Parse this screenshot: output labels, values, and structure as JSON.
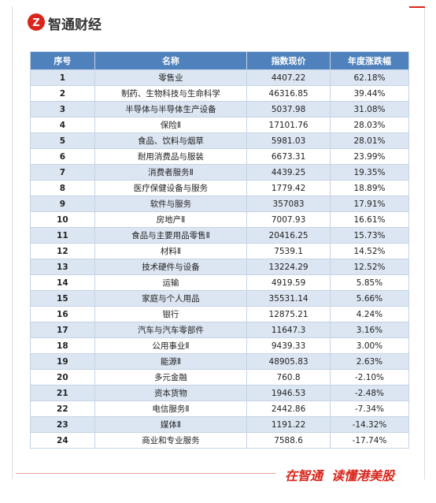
{
  "header": {
    "brand": "智通财经"
  },
  "table": {
    "headers": [
      "序号",
      "名称",
      "指数现价",
      "年度涨跌幅"
    ],
    "rows": [
      [
        1,
        "零售业",
        4407.22,
        "62.18%"
      ],
      [
        2,
        "制药、生物科技与生命科学",
        46316.85,
        "39.44%"
      ],
      [
        3,
        "半导体与半导体生产设备",
        5037.98,
        "31.08%"
      ],
      [
        4,
        "保险Ⅱ",
        17101.76,
        "28.03%"
      ],
      [
        5,
        "食品、饮料与烟草",
        5981.03,
        "28.01%"
      ],
      [
        6,
        "耐用消费品与服装",
        6673.31,
        "23.99%"
      ],
      [
        7,
        "消费者服务Ⅱ",
        4439.25,
        "19.35%"
      ],
      [
        8,
        "医疗保健设备与服务",
        1779.42,
        "18.89%"
      ],
      [
        9,
        "软件与服务",
        357083,
        "17.91%"
      ],
      [
        10,
        "房地产Ⅱ",
        7007.93,
        "16.61%"
      ],
      [
        11,
        "食品与主要用品零售Ⅱ",
        20416.25,
        "15.73%"
      ],
      [
        12,
        "材料Ⅱ",
        7539.1,
        "14.52%"
      ],
      [
        13,
        "技术硬件与设备",
        13224.29,
        "12.52%"
      ],
      [
        14,
        "运输",
        4919.59,
        "5.85%"
      ],
      [
        15,
        "家庭与个人用品",
        35531.14,
        "5.66%"
      ],
      [
        16,
        "银行",
        12875.21,
        "4.24%"
      ],
      [
        17,
        "汽车与汽车零部件",
        11647.3,
        "3.16%"
      ],
      [
        18,
        "公用事业Ⅱ",
        9439.33,
        "3.00%"
      ],
      [
        19,
        "能源Ⅱ",
        48905.83,
        "2.63%"
      ],
      [
        20,
        "多元金融",
        760.8,
        "-2.10%"
      ],
      [
        21,
        "资本货物",
        1946.53,
        "-2.48%"
      ],
      [
        22,
        "电信服务Ⅱ",
        2442.86,
        "-7.34%"
      ],
      [
        23,
        "媒体Ⅱ",
        1191.22,
        "-14.32%"
      ],
      [
        24,
        "商业和专业服务",
        7588.6,
        "-17.74%"
      ]
    ]
  },
  "footer": {
    "slogan": "在智通  读懂港美股"
  }
}
